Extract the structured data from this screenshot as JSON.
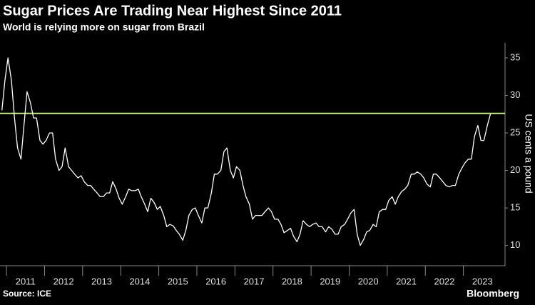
{
  "chart_data": {
    "type": "line",
    "title": "Sugar Prices Are Trading Near Highest Since 2011",
    "subtitle": "World is relying more on sugar from Brazil",
    "y_label": "US cents a pound",
    "source": "Source: ICE",
    "brand": "Bloomberg",
    "reference_line": {
      "value": 27.6,
      "color": "#c8f07a"
    },
    "xlim": [
      2010.83,
      2024.0
    ],
    "ylim": [
      7.3,
      37
    ],
    "yticks": [
      10,
      15,
      20,
      25,
      30,
      35
    ],
    "xticks": [
      {
        "value": 2011,
        "label": "2011"
      },
      {
        "value": 2012,
        "label": "2012"
      },
      {
        "value": 2013,
        "label": "2013"
      },
      {
        "value": 2014,
        "label": "2014"
      },
      {
        "value": 2015,
        "label": "2015"
      },
      {
        "value": 2016,
        "label": "2016"
      },
      {
        "value": 2017,
        "label": "2017"
      },
      {
        "value": 2018,
        "label": "2018"
      },
      {
        "value": 2019,
        "label": "2019"
      },
      {
        "value": 2020,
        "label": "2020"
      },
      {
        "value": 2021,
        "label": "2021"
      },
      {
        "value": 2022,
        "label": "2022"
      },
      {
        "value": 2023,
        "label": "2023"
      }
    ],
    "series": [
      {
        "name": "Sugar",
        "color": "#ffffff",
        "x": [
          2010.88,
          2010.96,
          2011.04,
          2011.13,
          2011.21,
          2011.29,
          2011.38,
          2011.46,
          2011.54,
          2011.63,
          2011.71,
          2011.79,
          2011.88,
          2011.96,
          2012.04,
          2012.13,
          2012.21,
          2012.29,
          2012.38,
          2012.46,
          2012.54,
          2012.63,
          2012.71,
          2012.79,
          2012.88,
          2012.96,
          2013.04,
          2013.13,
          2013.21,
          2013.29,
          2013.38,
          2013.46,
          2013.54,
          2013.63,
          2013.71,
          2013.79,
          2013.88,
          2013.96,
          2014.04,
          2014.13,
          2014.21,
          2014.29,
          2014.38,
          2014.46,
          2014.54,
          2014.63,
          2014.71,
          2014.79,
          2014.88,
          2014.96,
          2015.04,
          2015.13,
          2015.21,
          2015.29,
          2015.38,
          2015.46,
          2015.54,
          2015.63,
          2015.71,
          2015.79,
          2015.88,
          2015.96,
          2016.04,
          2016.13,
          2016.21,
          2016.29,
          2016.38,
          2016.46,
          2016.54,
          2016.63,
          2016.71,
          2016.79,
          2016.88,
          2016.96,
          2017.04,
          2017.13,
          2017.21,
          2017.29,
          2017.38,
          2017.46,
          2017.54,
          2017.63,
          2017.71,
          2017.79,
          2017.88,
          2017.96,
          2018.04,
          2018.13,
          2018.21,
          2018.29,
          2018.38,
          2018.46,
          2018.54,
          2018.63,
          2018.71,
          2018.79,
          2018.88,
          2018.96,
          2019.04,
          2019.13,
          2019.21,
          2019.29,
          2019.38,
          2019.46,
          2019.54,
          2019.63,
          2019.71,
          2019.79,
          2019.88,
          2019.96,
          2020.04,
          2020.13,
          2020.21,
          2020.29,
          2020.38,
          2020.46,
          2020.54,
          2020.63,
          2020.71,
          2020.79,
          2020.88,
          2020.96,
          2021.04,
          2021.13,
          2021.21,
          2021.29,
          2021.38,
          2021.46,
          2021.54,
          2021.63,
          2021.71,
          2021.79,
          2021.88,
          2021.96,
          2022.04,
          2022.13,
          2022.21,
          2022.29,
          2022.38,
          2022.46,
          2022.54,
          2022.63,
          2022.71,
          2022.79,
          2022.88,
          2022.96,
          2023.04,
          2023.13,
          2023.21,
          2023.29,
          2023.38,
          2023.46,
          2023.54,
          2023.63,
          2023.71
        ],
        "values": [
          28,
          32,
          35,
          32,
          27,
          23,
          21.5,
          26,
          30.5,
          29,
          27,
          27,
          24,
          23.5,
          24,
          25,
          25,
          21.5,
          20,
          20.5,
          23,
          20.5,
          20,
          19.5,
          19,
          19.3,
          18.5,
          18,
          18,
          17.5,
          17,
          16.5,
          16.5,
          17,
          17,
          18.5,
          17.5,
          16.3,
          15.5,
          16.5,
          17.5,
          17.3,
          17.3,
          17.5,
          16.5,
          15.5,
          14.5,
          16.3,
          15.7,
          14.8,
          15.2,
          14,
          12.5,
          12.8,
          12.6,
          12,
          11.5,
          10.7,
          12,
          14,
          14.8,
          15,
          14,
          13,
          15,
          15,
          17,
          19.5,
          19.5,
          20,
          22.5,
          23,
          20,
          19,
          20.5,
          20,
          18,
          16.5,
          15.5,
          13.5,
          14,
          14,
          14,
          14.5,
          15,
          14.5,
          13.5,
          13.5,
          12.8,
          11.7,
          12,
          12.3,
          11.2,
          10.5,
          11.5,
          13.3,
          12.8,
          12.5,
          12.8,
          13,
          12.5,
          12.5,
          11.8,
          12.5,
          12.2,
          11.5,
          11.5,
          12.5,
          12.8,
          13.5,
          14.3,
          14.8,
          11.5,
          10,
          10.8,
          11.8,
          12,
          12.8,
          12.5,
          14.5,
          14.8,
          14.8,
          16,
          16.5,
          15.5,
          16.5,
          17.2,
          17.5,
          18,
          19.5,
          19.5,
          19.8,
          19.5,
          19,
          18.2,
          17.8,
          19.5,
          19.5,
          19,
          18.5,
          18,
          17.8,
          18,
          18,
          19.5,
          20.3,
          21,
          21.5,
          21.5,
          24.5,
          26,
          24,
          24,
          26,
          27.5
        ]
      }
    ]
  }
}
